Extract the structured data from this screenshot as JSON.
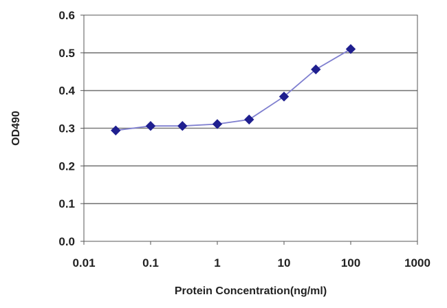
{
  "chart_data": {
    "type": "line",
    "xlabel": "Protein Concentration(ng/ml)",
    "ylabel": "OD490",
    "x_scale": "log",
    "xlim": [
      0.01,
      1000
    ],
    "ylim": [
      0.0,
      0.6
    ],
    "x_ticks": [
      "0.01",
      "0.1",
      "1",
      "10",
      "100",
      "1000"
    ],
    "x_tick_values": [
      0.01,
      0.1,
      1,
      10,
      100,
      1000
    ],
    "y_ticks": [
      "0.0",
      "0.1",
      "0.2",
      "0.3",
      "0.4",
      "0.5",
      "0.6"
    ],
    "y_tick_values": [
      0.0,
      0.1,
      0.2,
      0.3,
      0.4,
      0.5,
      0.6
    ],
    "grid": "horizontal",
    "series": [
      {
        "x": [
          0.03,
          0.1,
          0.3,
          1,
          3,
          10,
          30,
          100
        ],
        "y": [
          0.294,
          0.306,
          0.306,
          0.311,
          0.323,
          0.384,
          0.456,
          0.51
        ]
      }
    ]
  },
  "colors": {
    "series": "#1f1f8f",
    "line": "#7e7ecf",
    "grid": "#7a7a7a",
    "axis": "#555555",
    "background": "#ffffff"
  }
}
